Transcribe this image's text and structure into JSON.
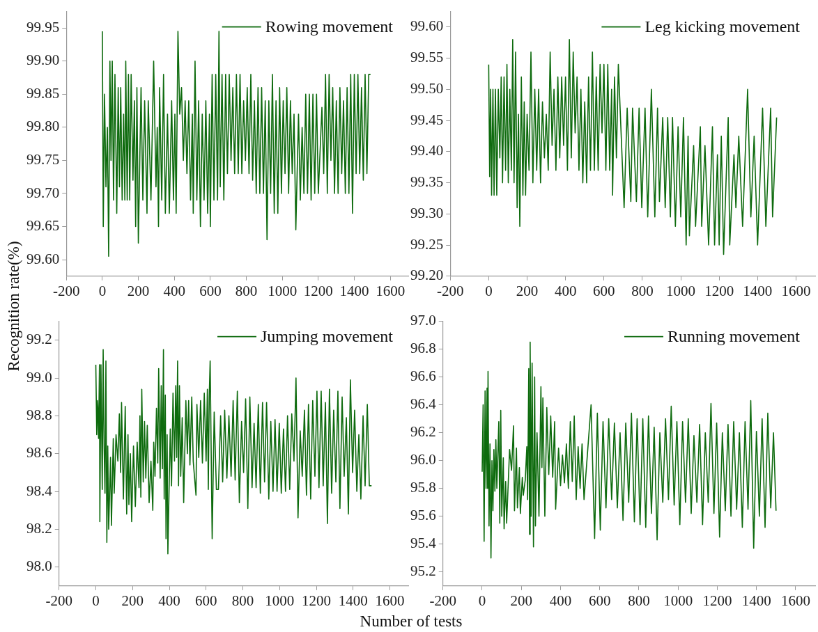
{
  "chart_data": [
    {
      "type": "line",
      "ylabel": "Recognition rate(%)",
      "legend": "top right",
      "xlim": [
        -200,
        1700
      ],
      "ylim": [
        99.575,
        99.975
      ],
      "xticks": [
        -200,
        0,
        200,
        400,
        600,
        800,
        1000,
        1200,
        1400,
        1600
      ],
      "yticks": [
        {
          "value": 99.6,
          "label": "99.60"
        },
        99.65,
        {
          "value": 99.7,
          "label": "99.70"
        },
        99.75,
        {
          "value": 99.8,
          "label": "99.80"
        },
        99.85,
        {
          "value": 99.9,
          "label": "99.90"
        },
        99.95
      ],
      "series": [
        {
          "name": "Rowing movement",
          "color": "#0e6b0e",
          "x": [
            0,
            5,
            12,
            20,
            28,
            35,
            42,
            48,
            55,
            62,
            70,
            80,
            88,
            95,
            102,
            110,
            118,
            125,
            130,
            138,
            145,
            152,
            160,
            170,
            178,
            185,
            192,
            200,
            215,
            225,
            235,
            248,
            255,
            270,
            285,
            298,
            305,
            312,
            318,
            330,
            340,
            350,
            362,
            372,
            385,
            395,
            403,
            410,
            420,
            430,
            440,
            450,
            460,
            470,
            480,
            490,
            500,
            505,
            515,
            525,
            535,
            545,
            555,
            565,
            575,
            585,
            595,
            600,
            610,
            620,
            630,
            640,
            648,
            655,
            665,
            675,
            685,
            695,
            705,
            715,
            725,
            735,
            745,
            755,
            765,
            775,
            785,
            795,
            805,
            815,
            825,
            835,
            845,
            855,
            865,
            875,
            885,
            895,
            905,
            915,
            925,
            935,
            945,
            955,
            965,
            975,
            985,
            995,
            1005,
            1015,
            1025,
            1035,
            1045,
            1055,
            1065,
            1075,
            1090,
            1100,
            1110,
            1120,
            1130,
            1140,
            1150,
            1160,
            1170,
            1180,
            1190,
            1200,
            1220,
            1230,
            1240,
            1250,
            1260,
            1270,
            1280,
            1290,
            1300,
            1310,
            1320,
            1330,
            1340,
            1350,
            1360,
            1370,
            1380,
            1390,
            1400,
            1410,
            1420,
            1430,
            1440,
            1450,
            1460,
            1470,
            1480,
            1490
          ],
          "values": [
            99.945,
            99.65,
            99.85,
            99.71,
            99.8,
            99.605,
            99.9,
            99.75,
            99.9,
            99.69,
            99.88,
            99.67,
            99.86,
            99.71,
            99.86,
            99.69,
            99.82,
            99.69,
            99.9,
            99.69,
            99.88,
            99.69,
            99.88,
            99.72,
            99.84,
            99.65,
            99.86,
            99.625,
            99.86,
            99.69,
            99.84,
            99.67,
            99.84,
            99.69,
            99.9,
            99.71,
            99.8,
            99.65,
            99.86,
            99.69,
            99.88,
            99.67,
            99.82,
            99.67,
            99.84,
            99.69,
            99.82,
            99.67,
            99.945,
            99.82,
            99.86,
            99.75,
            99.84,
            99.73,
            99.84,
            99.69,
            99.82,
            99.67,
            99.9,
            99.69,
            99.84,
            99.65,
            99.82,
            99.69,
            99.84,
            99.67,
            99.82,
            99.65,
            99.88,
            99.69,
            99.88,
            99.69,
            99.945,
            99.71,
            99.88,
            99.69,
            99.88,
            99.73,
            99.88,
            99.75,
            99.86,
            99.73,
            99.88,
            99.73,
            99.88,
            99.73,
            99.84,
            99.75,
            99.86,
            99.73,
            99.88,
            99.72,
            99.84,
            99.7,
            99.86,
            99.7,
            99.86,
            99.7,
            99.84,
            99.63,
            99.84,
            99.7,
            99.88,
            99.67,
            99.84,
            99.67,
            99.86,
            99.7,
            99.84,
            99.73,
            99.86,
            99.7,
            99.84,
            99.73,
            99.82,
            99.645,
            99.82,
            99.69,
            99.8,
            99.7,
            99.85,
            99.7,
            99.85,
            99.69,
            99.85,
            99.7,
            99.85,
            99.7,
            99.83,
            99.73,
            99.88,
            99.7,
            99.88,
            99.75,
            99.86,
            99.7,
            99.84,
            99.7,
            99.86,
            99.73,
            99.84,
            99.7,
            99.86,
            99.7,
            99.88,
            99.67,
            99.88,
            99.73,
            99.88,
            99.73,
            99.86,
            99.72,
            99.88,
            99.73,
            99.88,
            99.88
          ]
        }
      ]
    },
    {
      "type": "line",
      "legend": "top right",
      "xlim": [
        -200,
        1700
      ],
      "ylim": [
        99.2,
        99.625
      ],
      "xticks": [
        -200,
        0,
        200,
        400,
        600,
        800,
        1000,
        1200,
        1400,
        1600
      ],
      "yticks": [
        {
          "value": 99.2,
          "label": "99.20"
        },
        99.25,
        {
          "value": 99.3,
          "label": "99.30"
        },
        99.35,
        {
          "value": 99.4,
          "label": "99.40"
        },
        99.45,
        {
          "value": 99.5,
          "label": "99.50"
        },
        99.55,
        {
          "value": 99.6,
          "label": "99.60"
        }
      ],
      "series": [
        {
          "name": "Leg kicking movement",
          "color": "#0e6b0e",
          "x": [
            0,
            5,
            10,
            15,
            22,
            28,
            35,
            42,
            50,
            58,
            65,
            72,
            80,
            88,
            95,
            102,
            110,
            118,
            125,
            132,
            140,
            148,
            155,
            162,
            170,
            178,
            185,
            192,
            200,
            210,
            220,
            230,
            240,
            250,
            260,
            270,
            280,
            290,
            300,
            310,
            320,
            330,
            340,
            350,
            360,
            370,
            380,
            390,
            400,
            410,
            420,
            430,
            440,
            450,
            460,
            470,
            480,
            490,
            500,
            510,
            520,
            530,
            540,
            550,
            560,
            570,
            580,
            590,
            600,
            610,
            620,
            630,
            640,
            645,
            655,
            665,
            675,
            705,
            721,
            740,
            749,
            769,
            783,
            797,
            814,
            828,
            847,
            865,
            879,
            889,
            906,
            919,
            932,
            946,
            957,
            972,
            986,
            1000,
            1014,
            1028,
            1038,
            1045,
            1067,
            1077,
            1102,
            1109,
            1126,
            1145,
            1165,
            1176,
            1191,
            1200,
            1211,
            1223,
            1247,
            1255,
            1277,
            1287,
            1302,
            1322,
            1348,
            1365,
            1382,
            1400,
            1426,
            1443,
            1468,
            1478,
            1499
          ],
          "values": [
            99.54,
            99.36,
            99.5,
            99.33,
            99.5,
            99.33,
            99.5,
            99.33,
            99.5,
            99.39,
            99.52,
            99.35,
            99.52,
            99.37,
            99.54,
            99.35,
            99.5,
            99.37,
            99.58,
            99.35,
            99.56,
            99.31,
            99.46,
            99.28,
            99.52,
            99.33,
            99.48,
            99.33,
            99.46,
            99.37,
            99.56,
            99.35,
            99.5,
            99.37,
            99.5,
            99.35,
            99.48,
            99.39,
            99.46,
            99.37,
            99.56,
            99.41,
            99.5,
            99.37,
            99.52,
            99.39,
            99.52,
            99.41,
            99.52,
            99.37,
            99.58,
            99.39,
            99.56,
            99.43,
            99.52,
            99.37,
            99.5,
            99.35,
            99.48,
            99.35,
            99.52,
            99.37,
            99.56,
            99.37,
            99.52,
            99.37,
            99.54,
            99.43,
            99.54,
            99.37,
            99.54,
            99.37,
            99.5,
            99.33,
            99.52,
            99.39,
            99.54,
            99.31,
            99.47,
            99.32,
            99.47,
            99.32,
            99.47,
            99.31,
            99.47,
            99.295,
            99.5,
            99.295,
            99.47,
            99.32,
            99.455,
            99.31,
            99.455,
            99.295,
            99.455,
            99.28,
            99.44,
            99.295,
            99.455,
            99.25,
            99.425,
            99.265,
            99.41,
            99.28,
            99.44,
            99.28,
            99.41,
            99.25,
            99.44,
            99.25,
            99.395,
            99.25,
            99.425,
            99.235,
            99.455,
            99.25,
            99.395,
            99.31,
            99.425,
            99.28,
            99.5,
            99.295,
            99.425,
            99.25,
            99.47,
            99.28,
            99.47,
            99.295,
            99.455
          ]
        }
      ]
    },
    {
      "type": "line",
      "xlabel": "Number of tests",
      "legend": "top right",
      "xlim": [
        -200,
        1700
      ],
      "ylim": [
        97.9,
        99.3
      ],
      "xticks": [
        -200,
        0,
        200,
        400,
        600,
        800,
        1000,
        1200,
        1400,
        1600
      ],
      "yticks": [
        {
          "value": 98,
          "label": "98.0"
        },
        98.2,
        98.4,
        98.6,
        98.8,
        {
          "value": 99,
          "label": "99.0"
        },
        99.2
      ],
      "series": [
        {
          "name": "Jumping movement",
          "color": "#0e6b0e",
          "x": [
            0,
            5,
            10,
            15,
            20,
            22,
            28,
            35,
            40,
            45,
            50,
            55,
            60,
            65,
            70,
            80,
            85,
            95,
            100,
            110,
            120,
            128,
            135,
            140,
            150,
            160,
            168,
            175,
            180,
            188,
            195,
            205,
            215,
            225,
            235,
            240,
            245,
            250,
            258,
            265,
            272,
            280,
            290,
            300,
            310,
            315,
            322,
            330,
            337,
            342,
            350,
            356,
            362,
            368,
            372,
            378,
            382,
            388,
            392,
            398,
            405,
            412,
            420,
            428,
            435,
            440,
            445,
            450,
            455,
            462,
            470,
            478,
            490,
            498,
            505,
            512,
            522,
            530,
            545,
            550,
            560,
            570,
            580,
            590,
            600,
            607,
            612,
            617,
            622,
            633,
            644,
            656,
            667,
            679,
            690,
            701,
            713,
            724,
            736,
            747,
            758,
            770,
            781,
            793,
            804,
            815,
            827,
            838,
            850,
            861,
            872,
            884,
            895,
            907,
            918,
            929,
            941,
            952,
            964,
            975,
            986,
            998,
            1009,
            1021,
            1032,
            1043,
            1055,
            1066,
            1078,
            1089,
            1100,
            1112,
            1123,
            1135,
            1146,
            1157,
            1169,
            1180,
            1192,
            1203,
            1214,
            1226,
            1237,
            1249,
            1260,
            1271,
            1283,
            1294,
            1306,
            1317,
            1328,
            1340,
            1351,
            1363,
            1374,
            1385,
            1397,
            1408,
            1420,
            1431,
            1442,
            1454,
            1465,
            1477,
            1488,
            1500
          ],
          "values": [
            99.07,
            98.7,
            98.88,
            98.68,
            99.07,
            98.24,
            99.07,
            98.41,
            99.15,
            98.64,
            98.39,
            99.09,
            98.13,
            98.64,
            98.2,
            98.58,
            98.22,
            98.68,
            98.39,
            98.7,
            98.56,
            98.81,
            98.5,
            98.87,
            98.36,
            98.85,
            98.28,
            98.7,
            98.33,
            98.6,
            98.24,
            98.64,
            98.32,
            98.66,
            98.42,
            98.8,
            98.37,
            98.94,
            98.45,
            98.77,
            98.47,
            98.75,
            98.34,
            98.56,
            98.3,
            98.66,
            98.48,
            98.84,
            98.55,
            99.05,
            98.47,
            98.96,
            98.52,
            99.15,
            98.36,
            98.91,
            98.15,
            98.7,
            98.07,
            98.38,
            98.73,
            98.43,
            98.92,
            98.56,
            98.96,
            98.58,
            99.09,
            98.43,
            98.96,
            98.48,
            98.79,
            98.34,
            98.88,
            98.6,
            98.88,
            98.54,
            98.9,
            98.56,
            98.38,
            98.86,
            98.58,
            98.88,
            98.55,
            98.92,
            98.56,
            98.94,
            98.41,
            98.9,
            99.09,
            98.15,
            98.82,
            98.41,
            98.41,
            98.8,
            98.45,
            98.83,
            98.47,
            98.8,
            98.48,
            98.88,
            98.46,
            98.93,
            98.34,
            98.77,
            98.5,
            98.89,
            98.31,
            98.9,
            98.42,
            98.76,
            98.42,
            98.86,
            98.39,
            98.87,
            98.45,
            98.87,
            98.36,
            98.77,
            98.4,
            98.78,
            98.4,
            98.76,
            98.39,
            98.73,
            98.4,
            98.8,
            98.41,
            98.81,
            98.56,
            99.0,
            98.26,
            98.72,
            98.48,
            98.83,
            98.38,
            98.86,
            98.36,
            98.88,
            98.48,
            98.93,
            98.42,
            98.93,
            98.43,
            98.87,
            98.23,
            98.94,
            98.39,
            98.83,
            98.45,
            98.93,
            98.31,
            98.9,
            98.48,
            98.79,
            98.28,
            98.99,
            98.5,
            98.83,
            98.4,
            98.7,
            98.36,
            98.8,
            98.43,
            98.86,
            98.43,
            98.43
          ]
        }
      ]
    },
    {
      "type": "line",
      "legend": "top right",
      "xlim": [
        -200,
        1700
      ],
      "ylim": [
        95.1,
        97.0
      ],
      "xticks": [
        -200,
        0,
        200,
        400,
        600,
        800,
        1000,
        1200,
        1400,
        1600
      ],
      "yticks": [
        95.2,
        95.4,
        95.6,
        95.8,
        {
          "value": 96,
          "label": "96.0"
        },
        96.2,
        96.4,
        96.6,
        96.8,
        {
          "value": 97,
          "label": "97.0"
        }
      ],
      "series": [
        {
          "name": "Running movement",
          "color": "#0e6b0e",
          "x": [
            0,
            5,
            10,
            15,
            20,
            25,
            28,
            30,
            35,
            40,
            45,
            50,
            55,
            60,
            65,
            70,
            75,
            85,
            90,
            95,
            100,
            108,
            112,
            120,
            125,
            140,
            150,
            160,
            165,
            175,
            180,
            190,
            195,
            205,
            210,
            220,
            228,
            232,
            238,
            242,
            245,
            250,
            255,
            262,
            268,
            272,
            280,
            290,
            300,
            305,
            310,
            320,
            330,
            340,
            350,
            360,
            370,
            375,
            390,
            400,
            410,
            420,
            430,
            440,
            450,
            460,
            470,
            480,
            490,
            500,
            510,
            520,
            556,
            574,
            588,
            603,
            617,
            632,
            646,
            661,
            675,
            690,
            704,
            719,
            733,
            748,
            762,
            777,
            791,
            806,
            820,
            835,
            849,
            864,
            878,
            893,
            907,
            922,
            936,
            951,
            965,
            980,
            994,
            1009,
            1023,
            1038,
            1052,
            1067,
            1081,
            1096,
            1110,
            1125,
            1139,
            1154,
            1168,
            1183,
            1197,
            1212,
            1226,
            1241,
            1255,
            1270,
            1284,
            1299,
            1313,
            1328,
            1342,
            1357,
            1371,
            1386,
            1400,
            1415,
            1429,
            1444,
            1458,
            1473,
            1487,
            1500
          ],
          "values": [
            95.92,
            96.4,
            95.42,
            96.5,
            95.8,
            96.52,
            95.8,
            96.64,
            95.53,
            96.12,
            95.3,
            96.0,
            95.64,
            96.08,
            95.78,
            96.15,
            95.8,
            96.28,
            95.55,
            96.36,
            95.6,
            96.02,
            95.51,
            95.85,
            95.55,
            96.08,
            95.93,
            96.25,
            95.64,
            96.09,
            95.66,
            95.95,
            95.62,
            95.88,
            95.75,
            95.86,
            96.1,
            95.72,
            96.66,
            95.47,
            96.85,
            95.6,
            96.7,
            95.38,
            96.6,
            95.53,
            96.2,
            95.6,
            96.53,
            95.95,
            96.45,
            95.6,
            96.38,
            95.9,
            96.32,
            95.88,
            96.28,
            95.65,
            96.09,
            95.82,
            96.04,
            95.84,
            96.12,
            95.8,
            96.28,
            95.85,
            96.32,
            95.72,
            96.1,
            95.8,
            96.12,
            95.72,
            96.4,
            95.44,
            96.34,
            95.5,
            96.28,
            95.66,
            96.3,
            95.72,
            96.27,
            95.66,
            96.2,
            95.57,
            96.27,
            95.7,
            96.34,
            95.56,
            96.3,
            95.54,
            96.3,
            95.52,
            96.32,
            95.62,
            96.24,
            95.43,
            96.2,
            95.7,
            96.3,
            95.72,
            96.39,
            95.68,
            96.28,
            95.54,
            96.28,
            95.7,
            96.3,
            95.62,
            96.18,
            95.7,
            96.26,
            95.54,
            96.2,
            95.7,
            96.41,
            95.62,
            96.27,
            95.45,
            96.2,
            95.64,
            96.26,
            95.6,
            96.28,
            95.65,
            96.2,
            95.52,
            96.28,
            95.65,
            96.43,
            95.37,
            96.21,
            95.6,
            96.3,
            95.52,
            96.34,
            95.66,
            96.2,
            95.64
          ]
        }
      ]
    }
  ]
}
